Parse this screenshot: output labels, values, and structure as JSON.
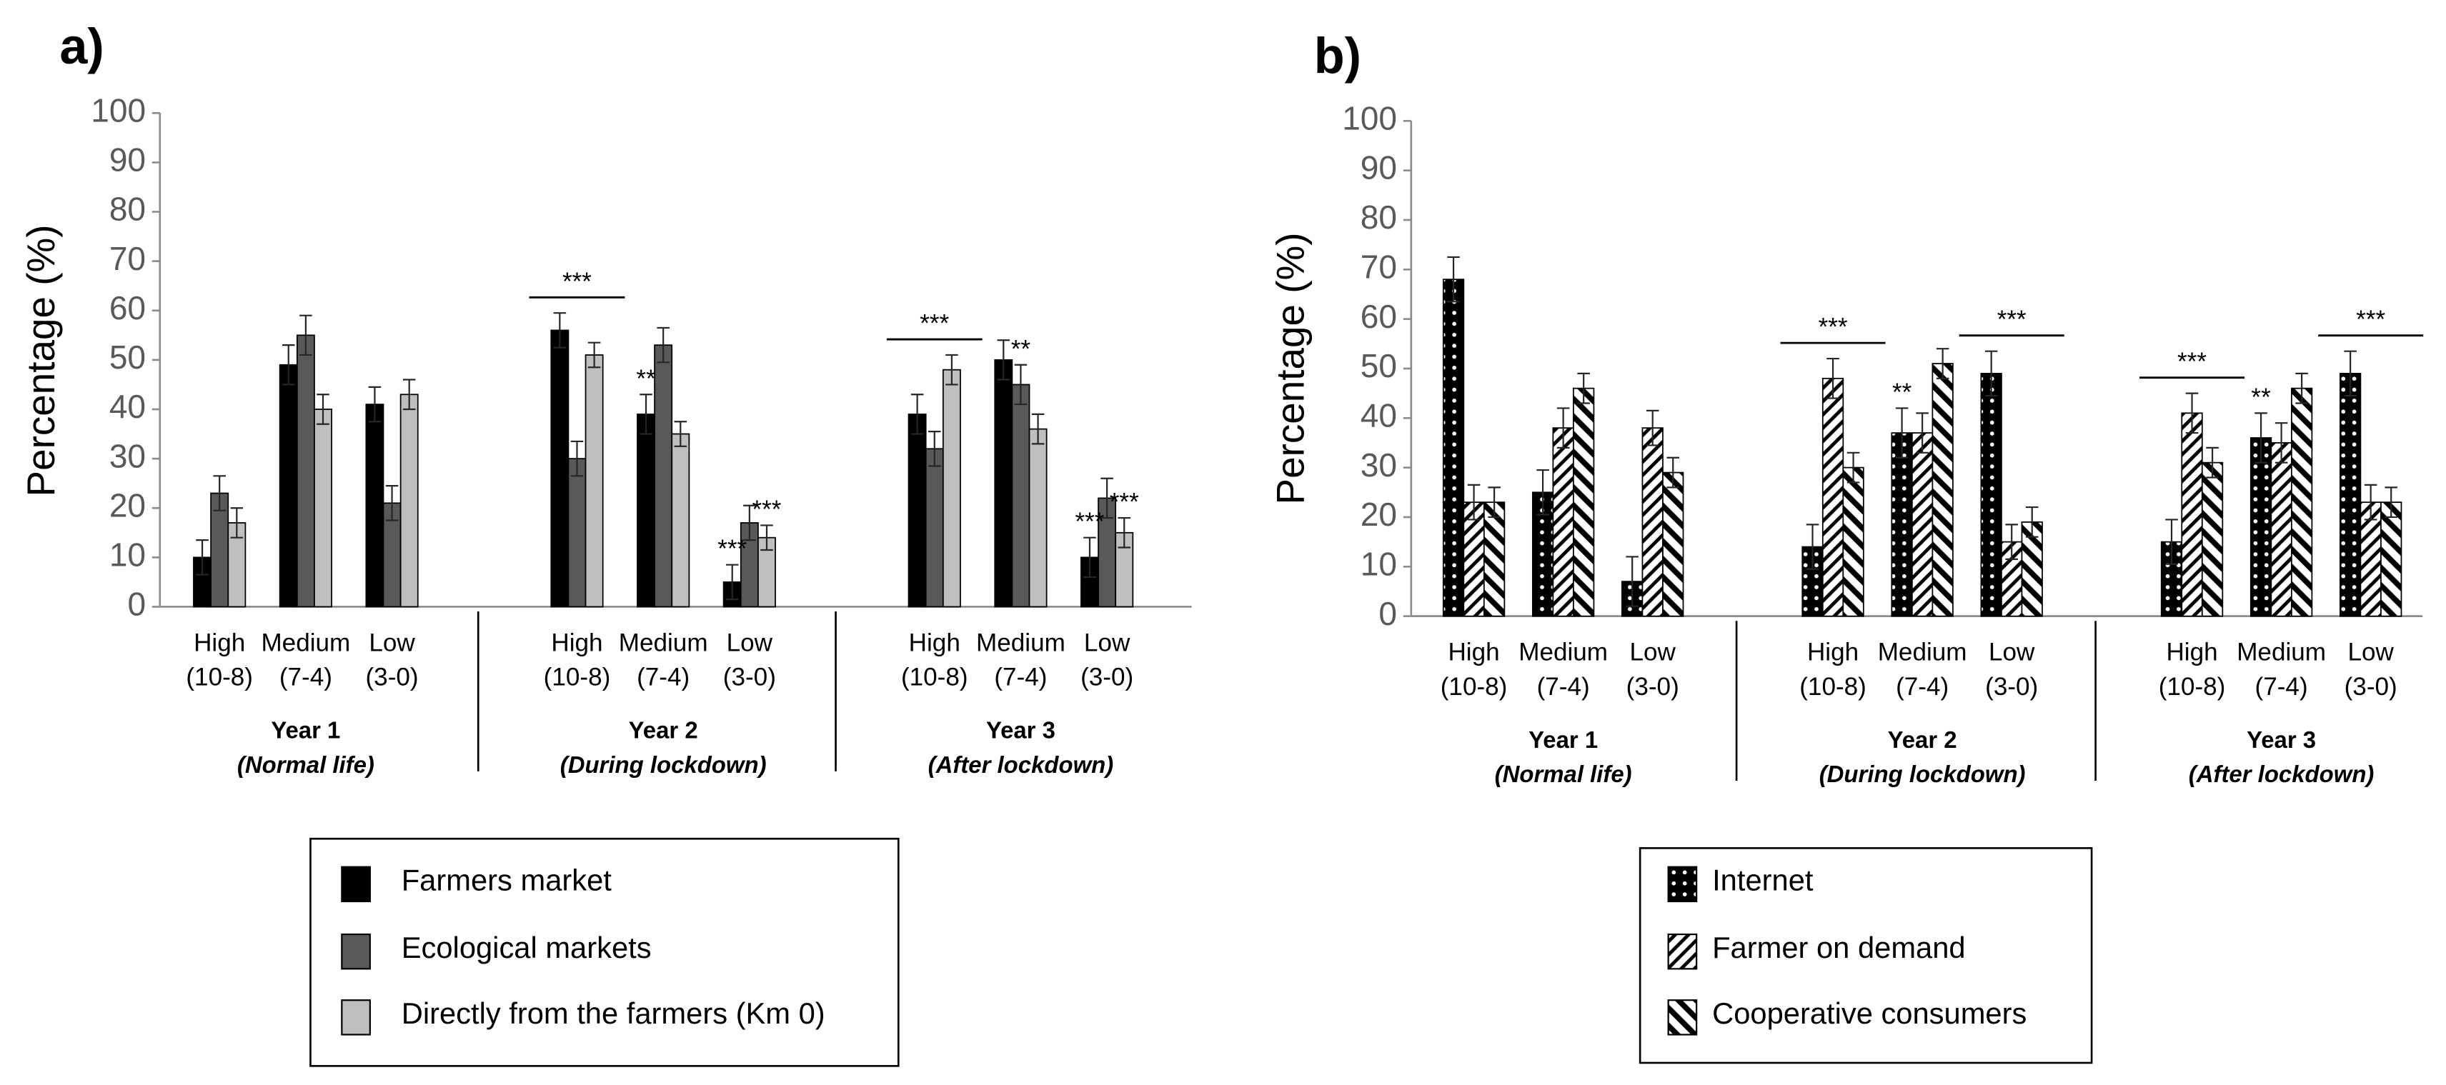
{
  "chart_data": [
    {
      "type": "bar",
      "panel": "a)",
      "ylabel": "Percentage (%)",
      "ylim": [
        0,
        100
      ],
      "yticks": [
        0,
        10,
        20,
        30,
        40,
        50,
        60,
        70,
        80,
        90,
        100
      ],
      "legend": "bottom",
      "categories": [
        [
          "High",
          "(10-8)"
        ],
        [
          "Medium",
          "(7-4)"
        ],
        [
          "Low",
          "(3-0)"
        ],
        [
          "High",
          "(10-8)"
        ],
        [
          "Medium",
          "(7-4)"
        ],
        [
          "Low",
          "(3-0)"
        ],
        [
          "High",
          "(10-8)"
        ],
        [
          "Medium",
          "(7-4)"
        ],
        [
          "Low",
          "(3-0)"
        ]
      ],
      "groups": [
        {
          "name": "Year 1",
          "note": "(Normal life)"
        },
        {
          "name": "Year 2",
          "note": "(During lockdown)"
        },
        {
          "name": "Year 3",
          "note": "(After lockdown)"
        }
      ],
      "series": [
        {
          "name": "Farmers market",
          "color": "#000000",
          "values": [
            10,
            49,
            41,
            56,
            39,
            5,
            39,
            50,
            10
          ],
          "errors": [
            3.5,
            4,
            3.5,
            3.5,
            4,
            3.5,
            4,
            4,
            4
          ]
        },
        {
          "name": "Ecological markets",
          "color": "#595959",
          "values": [
            23,
            55,
            21,
            30,
            53,
            17,
            32,
            45,
            22
          ],
          "errors": [
            3.5,
            4,
            3.5,
            3.5,
            3.5,
            3.5,
            3.5,
            4,
            4
          ]
        },
        {
          "name": "Directly from the farmers (Km 0)",
          "color": "#bfbfbf",
          "values": [
            17,
            40,
            43,
            51,
            35,
            14,
            48,
            36,
            15
          ],
          "errors": [
            3,
            3,
            3,
            2.5,
            2.5,
            2.5,
            3,
            3,
            3
          ]
        }
      ],
      "annotations": [
        {
          "text": "**",
          "category": 4,
          "series": 0
        },
        {
          "text": "***",
          "category": 5,
          "series": 0
        },
        {
          "text": "***",
          "category": 5,
          "series": 2
        },
        {
          "text": "**",
          "category": 7,
          "series": 1
        },
        {
          "text": "***",
          "category": 8,
          "series": 0
        },
        {
          "text": "***",
          "category": 8,
          "series": 2
        }
      ],
      "brackets": [
        {
          "text": "***",
          "category": 3
        },
        {
          "text": "***",
          "category": 6
        }
      ]
    },
    {
      "type": "bar",
      "panel": "b)",
      "ylabel": "Percentage (%)",
      "ylim": [
        0,
        100
      ],
      "yticks": [
        0,
        10,
        20,
        30,
        40,
        50,
        60,
        70,
        80,
        90,
        100
      ],
      "legend": "bottom",
      "categories": [
        [
          "High",
          "(10-8)"
        ],
        [
          "Medium",
          "(7-4)"
        ],
        [
          "Low",
          "(3-0)"
        ],
        [
          "High",
          "(10-8)"
        ],
        [
          "Medium",
          "(7-4)"
        ],
        [
          "Low",
          "(3-0)"
        ],
        [
          "High",
          "(10-8)"
        ],
        [
          "Medium",
          "(7-4)"
        ],
        [
          "Low",
          "(3-0)"
        ]
      ],
      "groups": [
        {
          "name": "Year 1",
          "note": "(Normal life)"
        },
        {
          "name": "Year 2",
          "note": "(During lockdown)"
        },
        {
          "name": "Year 3",
          "note": "(After lockdown)"
        }
      ],
      "series": [
        {
          "name": "Internet",
          "color": "#000000",
          "pattern": "dots",
          "values": [
            68,
            25,
            7,
            14,
            37,
            49,
            15,
            36,
            49
          ],
          "errors": [
            4.5,
            4.5,
            5,
            4.5,
            5,
            4.5,
            4.5,
            5,
            4.5
          ]
        },
        {
          "name": "Farmer on demand",
          "color": "#000000",
          "pattern": "diagonal",
          "values": [
            23,
            38,
            38,
            48,
            37,
            15,
            41,
            35,
            23
          ],
          "errors": [
            3.5,
            4,
            3.5,
            4,
            4,
            3.5,
            4,
            4,
            3.5
          ]
        },
        {
          "name": "Cooperative consumers",
          "color": "#000000",
          "pattern": "backslash",
          "values": [
            23,
            46,
            29,
            30,
            51,
            19,
            31,
            46,
            23
          ],
          "errors": [
            3,
            3,
            3,
            3,
            3,
            3,
            3,
            3,
            3
          ]
        }
      ],
      "annotations": [
        {
          "text": "**",
          "category": 4,
          "series": 0
        },
        {
          "text": "**",
          "category": 7,
          "series": 0
        }
      ],
      "brackets": [
        {
          "text": "***",
          "category": 3
        },
        {
          "text": "***",
          "category": 5
        },
        {
          "text": "***",
          "category": 6
        },
        {
          "text": "***",
          "category": 8
        }
      ]
    }
  ]
}
